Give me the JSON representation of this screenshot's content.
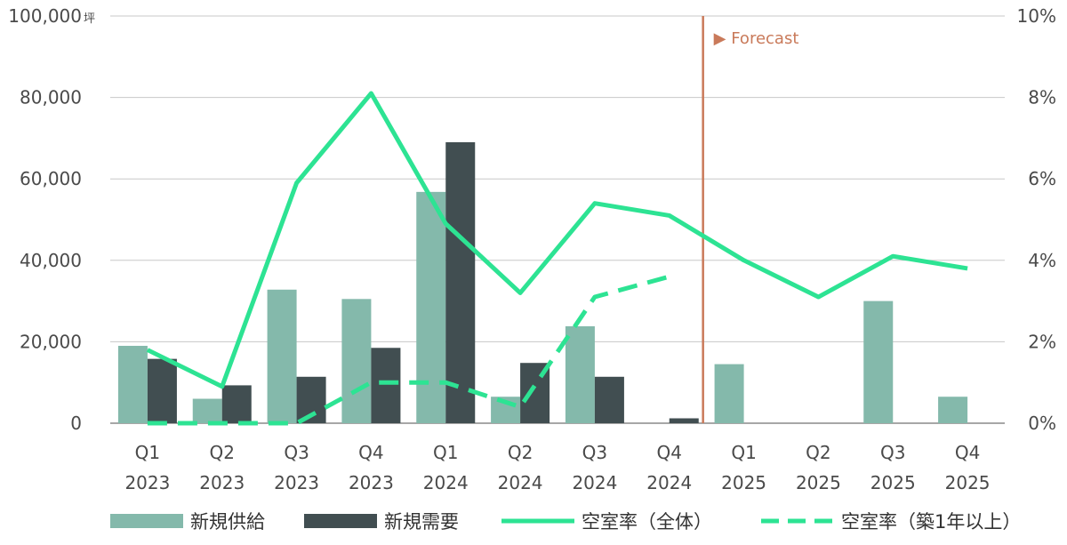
{
  "chart_data": {
    "type": "bar",
    "categories": [
      [
        "Q1",
        "2023"
      ],
      [
        "Q2",
        "2023"
      ],
      [
        "Q3",
        "2023"
      ],
      [
        "Q4",
        "2023"
      ],
      [
        "Q1",
        "2024"
      ],
      [
        "Q2",
        "2024"
      ],
      [
        "Q3",
        "2024"
      ],
      [
        "Q4",
        "2024"
      ],
      [
        "Q1",
        "2025"
      ],
      [
        "Q2",
        "2025"
      ],
      [
        "Q3",
        "2025"
      ],
      [
        "Q4",
        "2025"
      ]
    ],
    "left_axis": {
      "ylim": [
        0,
        100000
      ],
      "ticks": [
        "0",
        "20,000",
        "40,000",
        "60,000",
        "80,000",
        "100,000"
      ],
      "unit": "坪"
    },
    "right_axis": {
      "ylim": [
        0,
        10
      ],
      "ticks": [
        "0%",
        "2%",
        "4%",
        "6%",
        "8%",
        "10%"
      ]
    },
    "series": [
      {
        "name": "新規供給",
        "kind": "bar",
        "color": "#84b9ab",
        "values": [
          19000,
          6000,
          32800,
          30500,
          56800,
          6500,
          23800,
          0,
          14500,
          0,
          30000,
          6500
        ]
      },
      {
        "name": "新規需要",
        "kind": "bar",
        "color": "#414e51",
        "values": [
          15800,
          9300,
          11400,
          18500,
          69000,
          14800,
          11400,
          1200,
          0,
          0,
          0,
          0
        ]
      },
      {
        "name": "空室率（全体）",
        "kind": "line",
        "axis": "right",
        "color": "#2de393",
        "values": [
          1.8,
          0.9,
          5.9,
          8.1,
          4.9,
          3.2,
          5.4,
          5.1,
          4.0,
          3.1,
          4.1,
          3.8
        ]
      },
      {
        "name": "空室率（築1年以上）",
        "kind": "line-dashed",
        "axis": "right",
        "color": "#2de393",
        "values": [
          0.0,
          0.0,
          0.0,
          1.0,
          1.0,
          0.4,
          3.1,
          3.6,
          null,
          null,
          null,
          null
        ]
      }
    ],
    "forecast": {
      "label": "▶ Forecast",
      "after_category_index": 7,
      "color": "#c97a5a"
    },
    "grid": true,
    "legend_position": "bottom"
  }
}
